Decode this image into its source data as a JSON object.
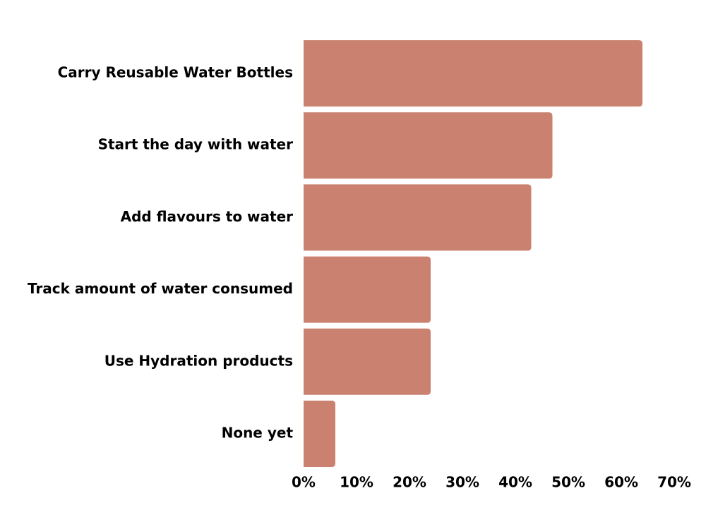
{
  "chart_data": {
    "type": "bar",
    "orientation": "horizontal",
    "categories": [
      "Carry Reusable Water Bottles",
      "Start the day with water",
      "Add flavours to water",
      "Track amount of water consumed",
      "Use Hydration products",
      "None yet"
    ],
    "values": [
      64,
      47,
      43,
      24,
      24,
      6
    ],
    "color": "#cb8170",
    "xlim": [
      0,
      70
    ],
    "xticks": [
      {
        "value": 0,
        "label": "0%"
      },
      {
        "value": 10,
        "label": "10%"
      },
      {
        "value": 20,
        "label": "20%"
      },
      {
        "value": 30,
        "label": "30%"
      },
      {
        "value": 40,
        "label": "40%"
      },
      {
        "value": 50,
        "label": "50%"
      },
      {
        "value": 60,
        "label": "60%"
      },
      {
        "value": 70,
        "label": "70%"
      }
    ],
    "grid": false
  }
}
